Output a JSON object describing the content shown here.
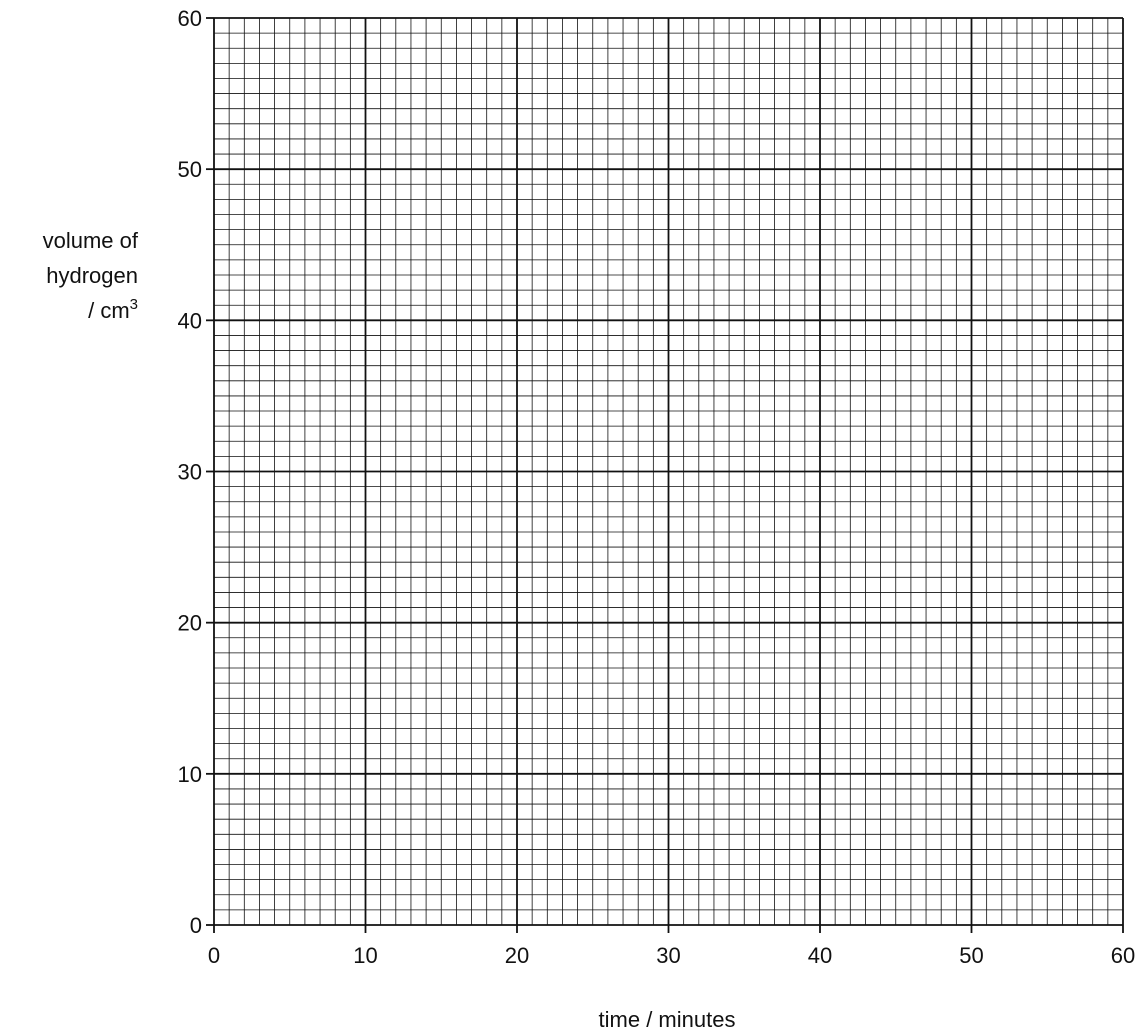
{
  "chart_data": {
    "type": "scatter",
    "title": "",
    "xlabel": "time / minutes",
    "ylabel_lines": [
      "volume of",
      "hydrogen",
      "/ cm",
      "3"
    ],
    "xlim": [
      0,
      60
    ],
    "ylim": [
      0,
      60
    ],
    "x_major_step": 10,
    "y_major_step": 10,
    "x_minor_step": 1,
    "y_minor_step": 1,
    "x_ticks": [
      "0",
      "10",
      "20",
      "30",
      "40",
      "50",
      "60"
    ],
    "y_ticks": [
      "0",
      "10",
      "20",
      "30",
      "40",
      "50",
      "60"
    ],
    "grid": true,
    "series": [],
    "colors": {
      "grid": "#111111",
      "background": "#ffffff",
      "text": "#111111"
    }
  }
}
